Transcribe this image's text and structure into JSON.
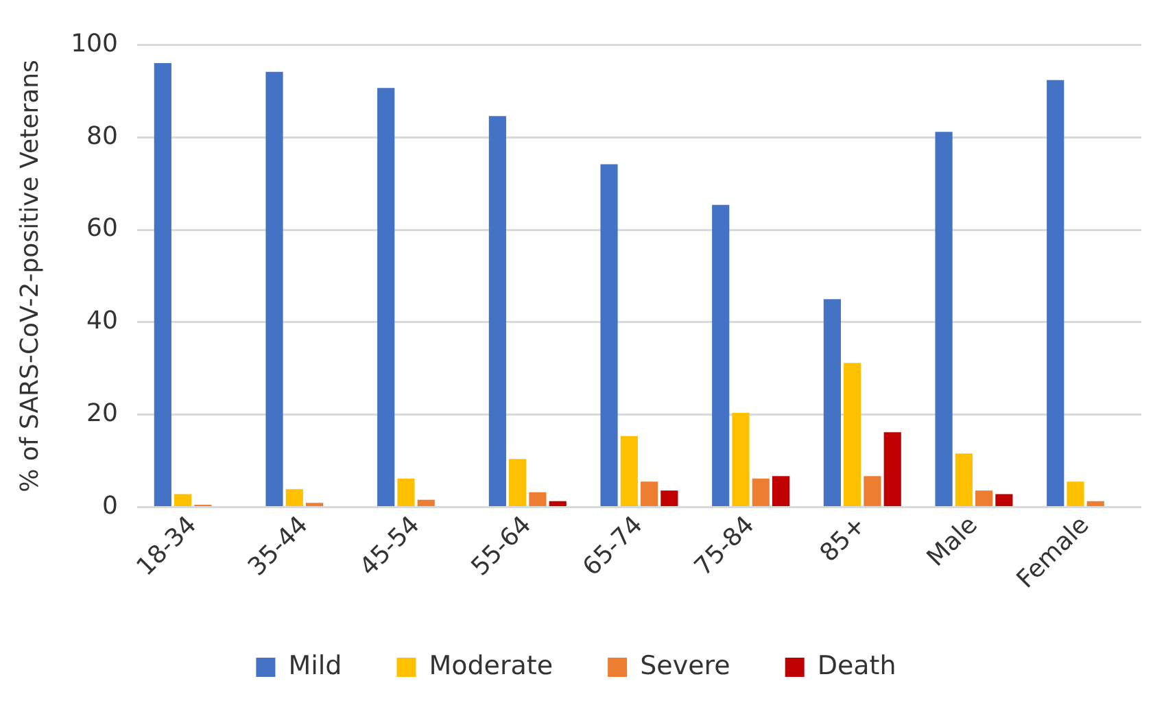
{
  "chart_data": {
    "type": "bar",
    "ylabel": "% of SARS-CoV-2-positive Veterans",
    "categories": [
      "18-34",
      "35-44",
      "45-54",
      "55-64",
      "65-74",
      "75-84",
      "85+",
      "Male",
      "Female"
    ],
    "series": [
      {
        "name": "Mild",
        "color": "#4472c4",
        "values": [
          96.1,
          94.2,
          90.7,
          84.6,
          74.2,
          65.4,
          45.0,
          81.2,
          92.4
        ]
      },
      {
        "name": "Moderate",
        "color": "#ffc000",
        "values": [
          2.8,
          3.9,
          6.2,
          10.4,
          15.4,
          20.4,
          31.2,
          11.6,
          5.5
        ]
      },
      {
        "name": "Severe",
        "color": "#ed7d31",
        "values": [
          0.5,
          0.9,
          1.6,
          3.2,
          5.5,
          6.2,
          6.7,
          3.6,
          1.3
        ]
      },
      {
        "name": "Death",
        "color": "#c00000",
        "values": [
          0,
          0,
          0,
          1.3,
          3.6,
          6.7,
          16.2,
          2.8,
          0
        ]
      }
    ],
    "ylim": [
      0,
      100
    ],
    "yticks": [
      0,
      20,
      40,
      60,
      80,
      100
    ],
    "grid": "y",
    "legend": "bottom"
  }
}
